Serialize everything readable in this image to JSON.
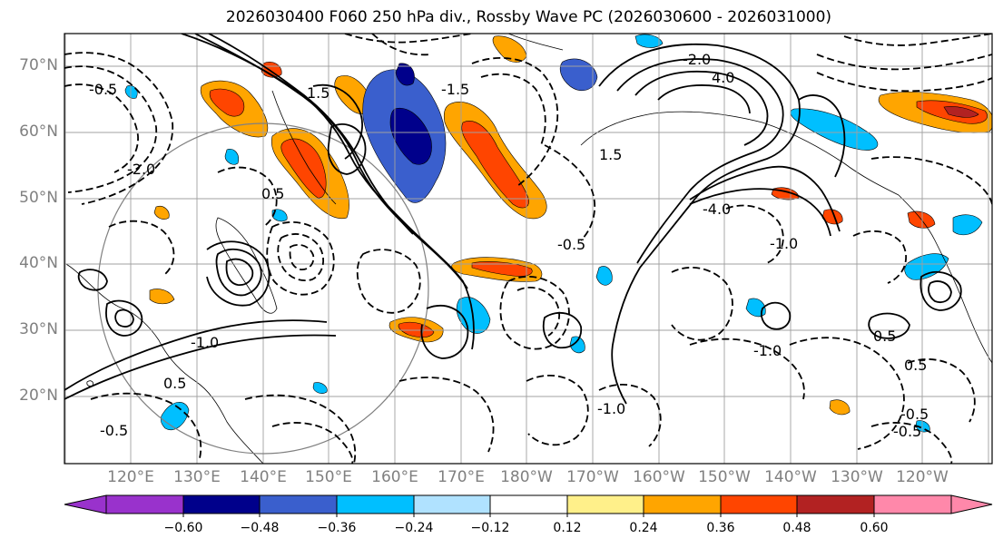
{
  "title": "2026030400 F060 250 hPa div., Rossby Wave PC (2026030600 - 2026031000)",
  "map": {
    "lat_ticks": [
      {
        "label": "70°N",
        "lat": 70
      },
      {
        "label": "60°N",
        "lat": 60
      },
      {
        "label": "50°N",
        "lat": 50
      },
      {
        "label": "40°N",
        "lat": 40
      },
      {
        "label": "30°N",
        "lat": 30
      },
      {
        "label": "20°N",
        "lat": 20
      }
    ],
    "lon_ticks": [
      {
        "label": "120°E"
      },
      {
        "label": "130°E"
      },
      {
        "label": "140°E"
      },
      {
        "label": "150°E"
      },
      {
        "label": "160°E"
      },
      {
        "label": "170°E"
      },
      {
        "label": "180°W"
      },
      {
        "label": "170°W"
      },
      {
        "label": "160°W"
      },
      {
        "label": "150°W"
      },
      {
        "label": "140°W"
      },
      {
        "label": "130°W"
      },
      {
        "label": "120°W"
      }
    ],
    "contour_labels": [
      {
        "text": "-0.5"
      },
      {
        "text": "-2.0"
      },
      {
        "text": "-1.5"
      },
      {
        "text": "4.0"
      },
      {
        "text": "-2.0"
      },
      {
        "text": "1.5"
      },
      {
        "text": "-4.0"
      },
      {
        "text": "1.5"
      },
      {
        "text": "-1.0"
      },
      {
        "text": "-0.5"
      },
      {
        "text": "0.5"
      },
      {
        "text": "-1.0"
      },
      {
        "text": "0.5"
      },
      {
        "text": "0.5"
      },
      {
        "text": "-0.5"
      },
      {
        "text": "-0.5"
      },
      {
        "text": "-1.0"
      },
      {
        "text": "-1.0"
      },
      {
        "text": "0.5"
      },
      {
        "text": "-0.5"
      }
    ]
  },
  "colorbar": {
    "colors": [
      "#9932cc",
      "#00008b",
      "#3a5fcd",
      "#00bfff",
      "#b0e2ff",
      "#ffffff",
      "#fff08a",
      "#ffa500",
      "#ff4500",
      "#b22222",
      "#ff88aa"
    ],
    "tick_labels": [
      "−0.60",
      "−0.48",
      "−0.36",
      "−0.24",
      "−0.12",
      "0.12",
      "0.24",
      "0.36",
      "0.48",
      "0.60"
    ]
  }
}
